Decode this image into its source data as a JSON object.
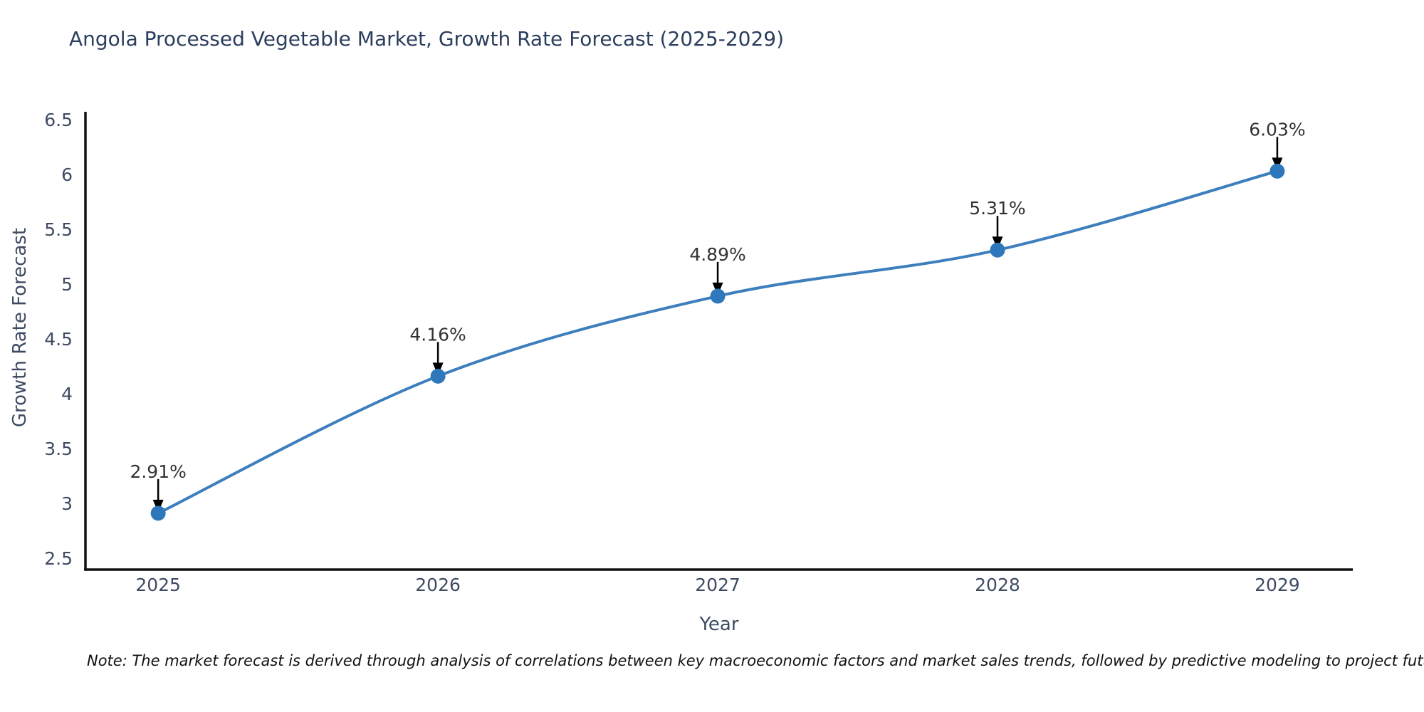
{
  "note": "Note: The market forecast is derived through analysis of correlations between key macroeconomic factors and market sales trends, followed by predictive modeling to project future sales",
  "colors": {
    "line": "#3d7ebd",
    "marker": "#2f77bb",
    "axis_line": "#111111",
    "tick_label": "#3f4b63",
    "annotation_text": "#333333",
    "arrow": "#000000",
    "title": "#2c3e5d"
  },
  "chart_data": {
    "type": "line",
    "title": "Angola Processed Vegetable Market, Growth Rate Forecast (2025-2029)",
    "xlabel": "Year",
    "ylabel": "Growth Rate Forecast",
    "x": [
      2025,
      2026,
      2027,
      2028,
      2029
    ],
    "values": [
      2.91,
      4.16,
      4.89,
      5.31,
      6.03
    ],
    "point_labels": [
      "2.91%",
      "4.16%",
      "4.89%",
      "5.31%",
      "6.03%"
    ],
    "xticks": [
      "2025",
      "2026",
      "2027",
      "2028",
      "2029"
    ],
    "yticks": [
      "2.5",
      "3",
      "3.5",
      "4",
      "4.5",
      "5",
      "5.5",
      "6",
      "6.5"
    ],
    "xlim": [
      2024.74,
      2029.27
    ],
    "ylim": [
      2.396,
      6.558
    ],
    "line_shape": "spline",
    "grid": false,
    "legend_position": "none",
    "markers": true
  }
}
